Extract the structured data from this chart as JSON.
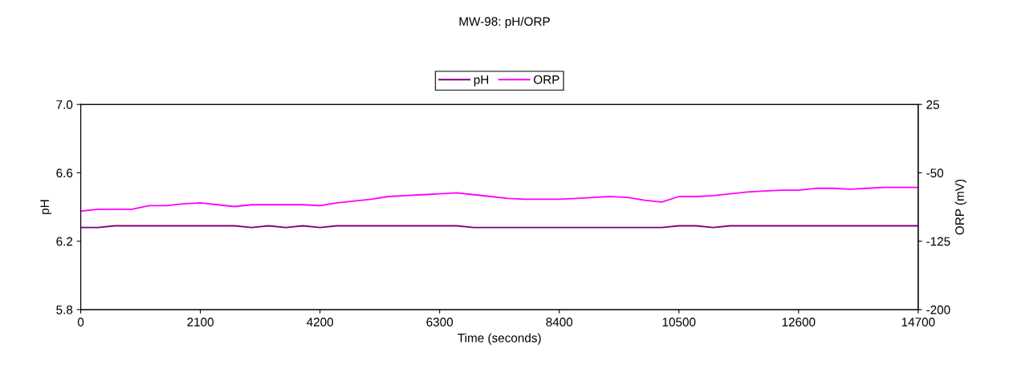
{
  "chart_data": {
    "type": "line",
    "title": "MW-98: pH/ORP",
    "xlabel": "Time (seconds)",
    "ylabel": "pH",
    "y2label": "ORP (mV)",
    "x": [
      0,
      300,
      600,
      900,
      1200,
      1500,
      1800,
      2100,
      2400,
      2700,
      3000,
      3300,
      3600,
      3900,
      4200,
      4500,
      4800,
      5100,
      5400,
      5700,
      6000,
      6300,
      6600,
      6900,
      7200,
      7500,
      7800,
      8100,
      8400,
      8700,
      9000,
      9300,
      9600,
      9900,
      10200,
      10500,
      10800,
      11100,
      11400,
      11700,
      12000,
      12300,
      12600,
      12900,
      13200,
      13500,
      13800,
      14100,
      14400,
      14700
    ],
    "series": [
      {
        "name": "pH",
        "color": "#800080",
        "values": [
          6.28,
          6.28,
          6.29,
          6.29,
          6.29,
          6.29,
          6.29,
          6.29,
          6.29,
          6.29,
          6.28,
          6.29,
          6.28,
          6.29,
          6.28,
          6.29,
          6.29,
          6.29,
          6.29,
          6.29,
          6.29,
          6.29,
          6.29,
          6.28,
          6.28,
          6.28,
          6.28,
          6.28,
          6.28,
          6.28,
          6.28,
          6.28,
          6.28,
          6.28,
          6.28,
          6.29,
          6.29,
          6.28,
          6.29,
          6.29,
          6.29,
          6.29,
          6.29,
          6.29,
          6.29,
          6.29,
          6.29,
          6.29,
          6.29,
          6.29
        ]
      },
      {
        "name": "ORP",
        "color": "#ff00ff",
        "axis": "y2",
        "values": [
          -92,
          -90,
          -90,
          -90,
          -86,
          -86,
          -84,
          -83,
          -85,
          -87,
          -85,
          -85,
          -85,
          -85,
          -86,
          -83,
          -81,
          -79,
          -76,
          -75,
          -74,
          -73,
          -72,
          -74,
          -76,
          -78,
          -79,
          -79,
          -79,
          -78,
          -77,
          -76,
          -77,
          -80,
          -82,
          -76,
          -76,
          -75,
          -73,
          -71,
          -70,
          -69,
          -69,
          -67,
          -67,
          -68,
          -67,
          -66,
          -66,
          -66
        ]
      }
    ],
    "xlim": [
      0,
      14700
    ],
    "xticks": [
      0,
      2100,
      4200,
      6300,
      8400,
      10500,
      12600,
      14700
    ],
    "ylim": [
      5.8,
      7.0
    ],
    "yticks": [
      {
        "value": 5.8,
        "label": "5.8"
      },
      {
        "value": 6.2,
        "label": "6.2"
      },
      {
        "value": 6.6,
        "label": "6.6"
      },
      {
        "value": 7.0,
        "label": "7.0"
      }
    ],
    "y2lim": [
      -200,
      25
    ],
    "y2ticks": [
      -200,
      -125,
      -50,
      25
    ],
    "legend": "top",
    "grid": false,
    "marker": "none",
    "line_style": "solid"
  }
}
